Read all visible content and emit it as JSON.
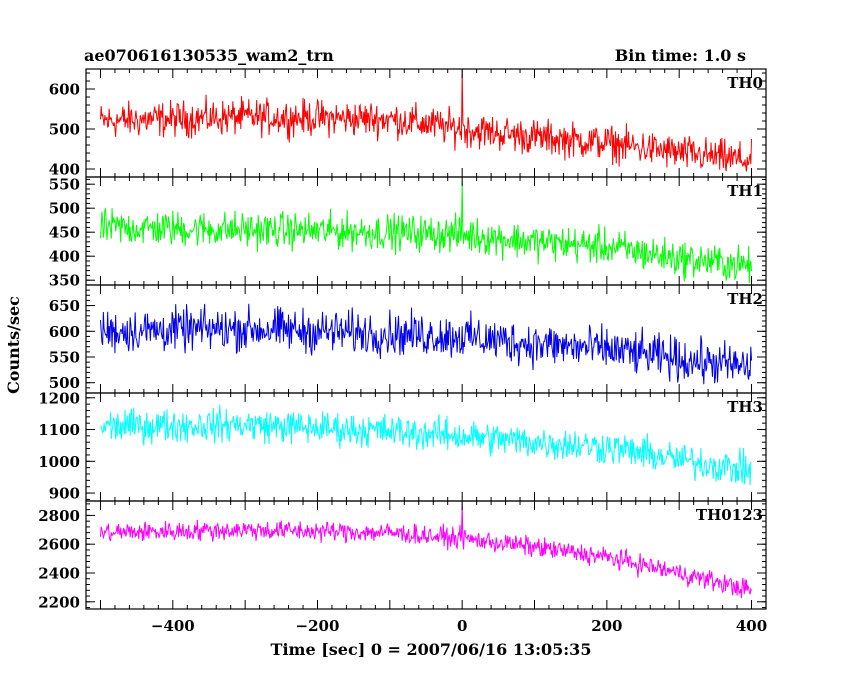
{
  "header": {
    "title": "ae070616130535_wam2_trn",
    "bin_time": "Bin time: 1.0 s"
  },
  "axes": {
    "xlabel": "Time [sec] 0 = 2007/06/16 13:05:35",
    "ylabel": "Counts/sec"
  },
  "chart_data": {
    "type": "line",
    "title": "ae070616130535_wam2_trn",
    "subtitle": "Bin time: 1.0 s",
    "xlabel": "Time [sec] 0 = 2007/06/16 13:05:35",
    "ylabel": "Counts/sec",
    "xlim": [
      -520,
      420
    ],
    "x_range": [
      -500,
      400
    ],
    "bin_time": 1.0,
    "x_ticks": [
      -400,
      -200,
      0,
      200,
      400
    ],
    "x_tick_labels": [
      "−400",
      "−200",
      "0",
      "200",
      "400"
    ],
    "grid": false,
    "legend": "none",
    "panels": [
      {
        "name": "TH0",
        "color": "#ff0000",
        "ylim": [
          380,
          650
        ],
        "y_ticks": [
          400,
          500,
          600
        ],
        "y_tick_labels": [
          "400",
          "500",
          "600"
        ],
        "trend_x": [
          -500,
          -300,
          -100,
          0,
          100,
          200,
          300,
          400
        ],
        "trend_y": [
          520,
          530,
          525,
          500,
          480,
          465,
          440,
          420
        ],
        "noise_amplitude": 38,
        "spike": {
          "x": 0,
          "y": 650
        }
      },
      {
        "name": "TH1",
        "color": "#00ff00",
        "ylim": [
          340,
          565
        ],
        "y_ticks": [
          350,
          400,
          450,
          500,
          550
        ],
        "y_tick_labels": [
          "350",
          "400",
          "450",
          "500",
          "550"
        ],
        "trend_x": [
          -500,
          -300,
          -100,
          0,
          100,
          200,
          300,
          400
        ],
        "trend_y": [
          460,
          455,
          450,
          445,
          430,
          420,
          395,
          380
        ],
        "noise_amplitude": 32,
        "spike": {
          "x": 0,
          "y": 560
        }
      },
      {
        "name": "TH2",
        "color": "#0000ee",
        "ylim": [
          480,
          690
        ],
        "y_ticks": [
          500,
          550,
          600,
          650
        ],
        "y_tick_labels": [
          "500",
          "550",
          "600",
          "650"
        ],
        "trend_x": [
          -500,
          -300,
          -100,
          0,
          100,
          200,
          300,
          400
        ],
        "trend_y": [
          600,
          605,
          595,
          590,
          575,
          565,
          545,
          530
        ],
        "noise_amplitude": 36,
        "spike": null
      },
      {
        "name": "TH3",
        "color": "#00ffff",
        "ylim": [
          875,
          1215
        ],
        "y_ticks": [
          900,
          1000,
          1100,
          1200
        ],
        "y_tick_labels": [
          "900",
          "1000",
          "1100",
          "1200"
        ],
        "trend_x": [
          -500,
          -300,
          -100,
          0,
          100,
          200,
          300,
          400
        ],
        "trend_y": [
          1110,
          1115,
          1095,
          1080,
          1060,
          1045,
          1005,
          970
        ],
        "noise_amplitude": 45,
        "spike": null
      },
      {
        "name": "TH0123",
        "color": "#ff00ff",
        "ylim": [
          2150,
          2900
        ],
        "y_ticks": [
          2200,
          2400,
          2600,
          2800
        ],
        "y_tick_labels": [
          "2200",
          "2400",
          "2600",
          "2800"
        ],
        "trend_x": [
          -500,
          -300,
          -100,
          0,
          100,
          200,
          300,
          400
        ],
        "trend_y": [
          2680,
          2700,
          2680,
          2640,
          2580,
          2510,
          2400,
          2280
        ],
        "noise_amplitude": 60,
        "spike": {
          "x": 0,
          "y": 2890
        }
      }
    ]
  }
}
